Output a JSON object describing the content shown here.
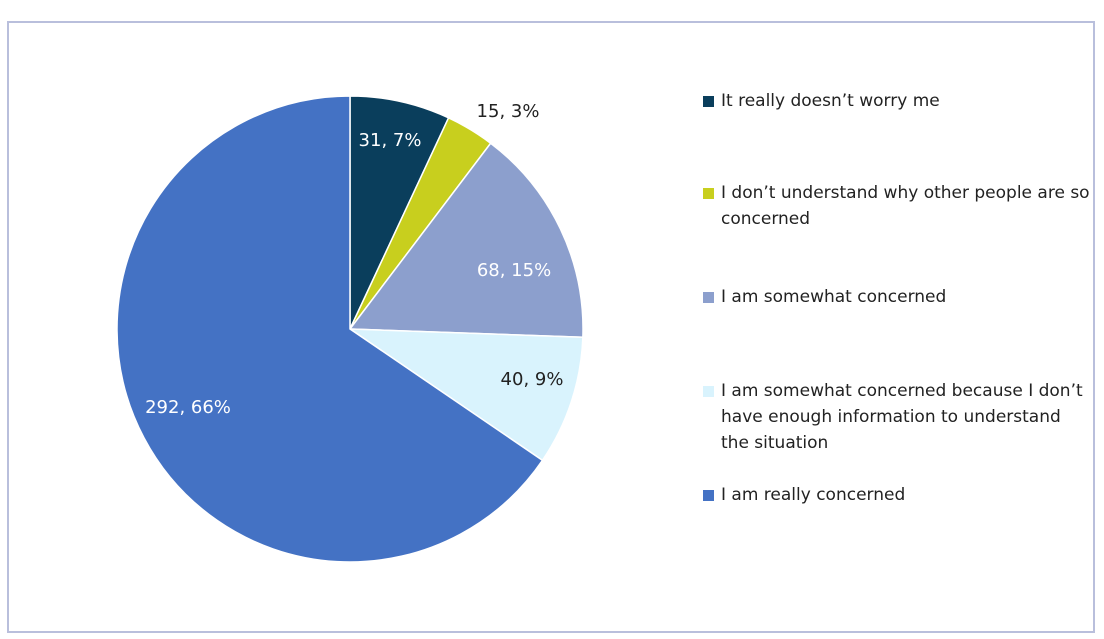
{
  "chart_data": {
    "type": "pie",
    "title": "",
    "start_angle_deg": 0,
    "direction": "clockwise",
    "slices": [
      {
        "label": "It really doesn't worry me",
        "value": 31,
        "percent": "7%",
        "display": "31, 7%",
        "color": "#0a3e5c",
        "label_color": "#ffffff"
      },
      {
        "label": "I don't understand why other people are so concerned",
        "value": 15,
        "percent": "3%",
        "display": "15, 3%",
        "color": "#c8cf1e",
        "label_color": "#222222"
      },
      {
        "label": "I am somewhat concerned",
        "value": 68,
        "percent": "15%",
        "display": "68, 15%",
        "color": "#8c9fcd",
        "label_color": "#ffffff"
      },
      {
        "label": "I am somewhat concerned because I don't have enough information to understand the situation",
        "value": 40,
        "percent": "9%",
        "display": "40, 9%",
        "color": "#d9f3fd",
        "label_color": "#222222"
      },
      {
        "label": "I am really concerned",
        "value": 292,
        "percent": "66%",
        "display": "292, 66%",
        "color": "#4472c4",
        "label_color": "#ffffff"
      }
    ],
    "legend_position": "right"
  },
  "legend": {
    "items": [
      {
        "label": "It really doesn’t worry me",
        "color": "#0a3e5c"
      },
      {
        "label": "I don’t understand why other people are so concerned",
        "color": "#c8cf1e"
      },
      {
        "label": "I am somewhat concerned",
        "color": "#8c9fcd"
      },
      {
        "label": "I am somewhat concerned because I don’t have enough information to understand the situation",
        "color": "#d9f3fd"
      },
      {
        "label": "I am really concerned",
        "color": "#4472c4"
      }
    ]
  }
}
